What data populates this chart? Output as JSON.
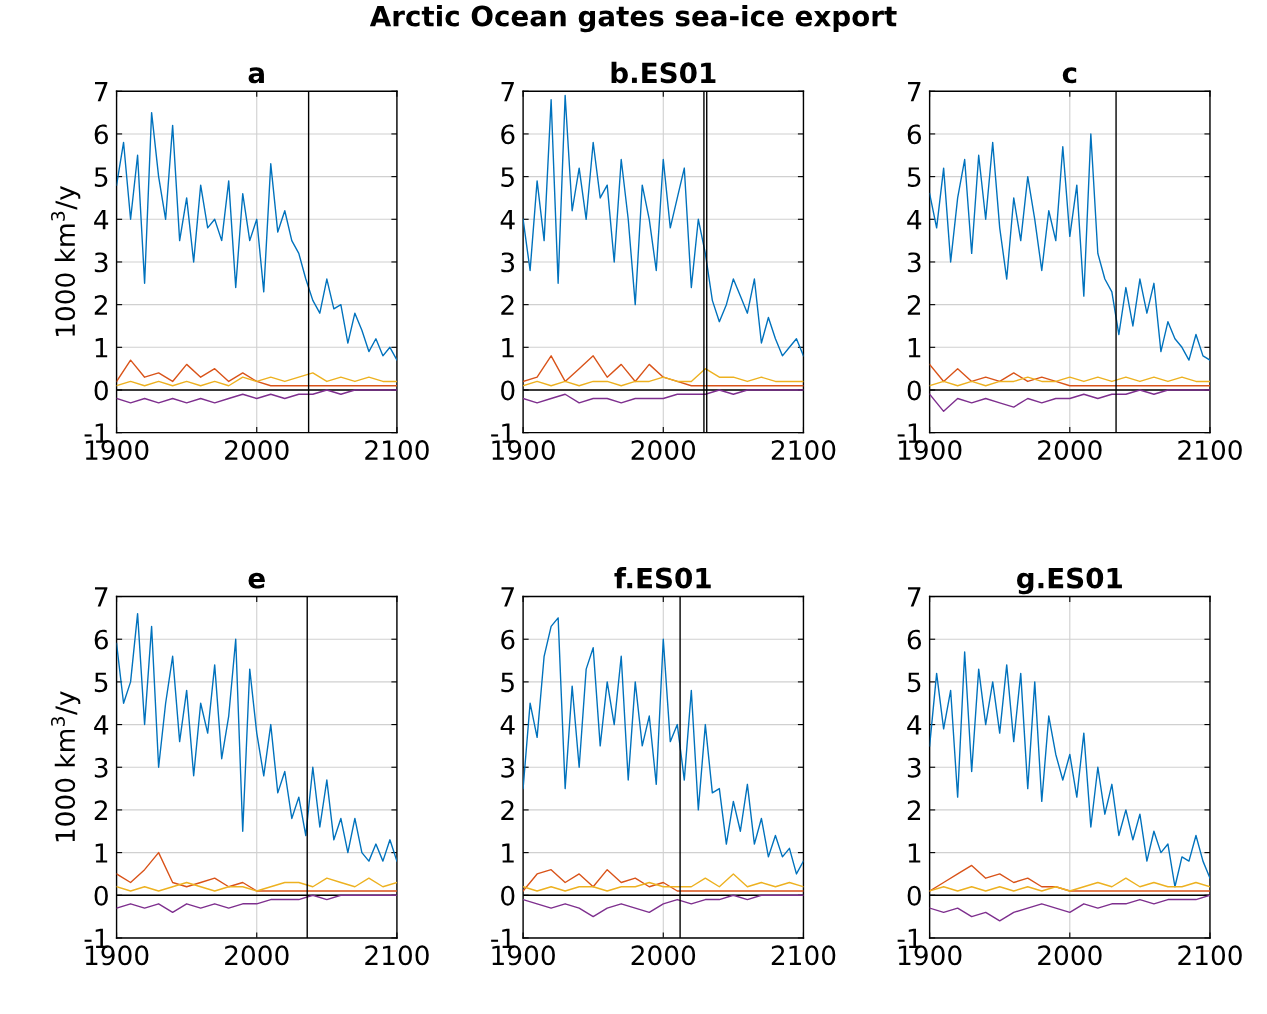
{
  "chart_data": [
    {
      "type": "line",
      "title": "a",
      "ylabel": "1000 km$^{3}$/y",
      "annotations": [
        "Arctic Ocean gates sea-ice export"
      ],
      "xlim": [
        1900,
        2100
      ],
      "ylim": [
        -1,
        7
      ],
      "xticks": [
        1900,
        2000,
        2100
      ],
      "yticks": [
        -1,
        0,
        1,
        2,
        3,
        4,
        5,
        6,
        7
      ],
      "grid": true,
      "series": [
        {
          "color": "#0072bd",
          "x": [
            1900,
            1905,
            1910,
            1915,
            1920,
            1925,
            1930,
            1935,
            1940,
            1945,
            1950,
            1955,
            1960,
            1965,
            1970,
            1975,
            1980,
            1985,
            1990,
            1995,
            2000,
            2005,
            2010,
            2015,
            2020,
            2025,
            2030,
            2035,
            2040,
            2045,
            2050,
            2055,
            2060,
            2065,
            2070,
            2075,
            2080,
            2085,
            2090,
            2095,
            2100
          ],
          "values": [
            4.8,
            5.8,
            4.0,
            5.5,
            2.5,
            6.5,
            5.0,
            4.0,
            6.2,
            3.5,
            4.5,
            3.0,
            4.8,
            3.8,
            4.0,
            3.5,
            4.9,
            2.4,
            4.6,
            3.5,
            4.0,
            2.3,
            5.3,
            3.7,
            4.2,
            3.5,
            3.2,
            2.6,
            2.1,
            1.8,
            2.6,
            1.9,
            2.0,
            1.1,
            1.8,
            1.4,
            0.9,
            1.2,
            0.8,
            1.0,
            0.7
          ]
        },
        {
          "color": "#d95319",
          "x": [
            1900,
            1910,
            1920,
            1930,
            1940,
            1950,
            1960,
            1970,
            1980,
            1990,
            2000,
            2010,
            2020,
            2030,
            2040,
            2050,
            2060,
            2070,
            2080,
            2090,
            2100
          ],
          "values": [
            0.2,
            0.7,
            0.3,
            0.4,
            0.2,
            0.6,
            0.3,
            0.5,
            0.2,
            0.4,
            0.2,
            0.1,
            0.1,
            0.1,
            0.1,
            0.1,
            0.1,
            0.1,
            0.1,
            0.1,
            0.1
          ]
        },
        {
          "color": "#edb120",
          "x": [
            1900,
            1910,
            1920,
            1930,
            1940,
            1950,
            1960,
            1970,
            1980,
            1990,
            2000,
            2010,
            2020,
            2030,
            2040,
            2050,
            2060,
            2070,
            2080,
            2090,
            2100
          ],
          "values": [
            0.1,
            0.2,
            0.1,
            0.2,
            0.1,
            0.2,
            0.1,
            0.2,
            0.1,
            0.3,
            0.2,
            0.3,
            0.2,
            0.3,
            0.4,
            0.2,
            0.3,
            0.2,
            0.3,
            0.2,
            0.2
          ]
        },
        {
          "color": "#7e2f8e",
          "x": [
            1900,
            1910,
            1920,
            1930,
            1940,
            1950,
            1960,
            1970,
            1980,
            1990,
            2000,
            2010,
            2020,
            2030,
            2040,
            2050,
            2060,
            2070,
            2080,
            2090,
            2100
          ],
          "values": [
            -0.2,
            -0.3,
            -0.2,
            -0.3,
            -0.2,
            -0.3,
            -0.2,
            -0.3,
            -0.2,
            -0.1,
            -0.2,
            -0.1,
            -0.2,
            -0.1,
            -0.1,
            0.0,
            -0.1,
            0.0,
            0.0,
            0.0,
            0.0
          ]
        }
      ],
      "ref_lines": [
        {
          "axis": "y",
          "value": 0,
          "color": "#000000"
        },
        {
          "axis": "x",
          "value": 2037,
          "color": "#000000"
        }
      ]
    },
    {
      "type": "line",
      "title": "b.ES01",
      "xlim": [
        1900,
        2100
      ],
      "ylim": [
        -1,
        7
      ],
      "xticks": [
        1900,
        2000,
        2100
      ],
      "yticks": [
        -1,
        0,
        1,
        2,
        3,
        4,
        5,
        6,
        7
      ],
      "grid": true,
      "series": [
        {
          "color": "#0072bd",
          "x": [
            1900,
            1905,
            1910,
            1915,
            1920,
            1925,
            1930,
            1935,
            1940,
            1945,
            1950,
            1955,
            1960,
            1965,
            1970,
            1975,
            1980,
            1985,
            1990,
            1995,
            2000,
            2005,
            2010,
            2015,
            2020,
            2025,
            2030,
            2035,
            2040,
            2045,
            2050,
            2055,
            2060,
            2065,
            2070,
            2075,
            2080,
            2085,
            2090,
            2095,
            2100
          ],
          "values": [
            4.0,
            2.8,
            4.9,
            3.5,
            6.8,
            2.5,
            6.9,
            4.2,
            5.2,
            4.0,
            5.8,
            4.5,
            4.8,
            3.0,
            5.4,
            4.0,
            2.0,
            4.8,
            4.0,
            2.8,
            5.4,
            3.8,
            4.5,
            5.2,
            2.4,
            4.0,
            3.2,
            2.1,
            1.6,
            2.0,
            2.6,
            2.2,
            1.8,
            2.6,
            1.1,
            1.7,
            1.2,
            0.8,
            1.0,
            1.2,
            0.8
          ]
        },
        {
          "color": "#d95319",
          "x": [
            1900,
            1910,
            1920,
            1930,
            1940,
            1950,
            1960,
            1970,
            1980,
            1990,
            2000,
            2010,
            2020,
            2030,
            2040,
            2050,
            2060,
            2070,
            2080,
            2090,
            2100
          ],
          "values": [
            0.2,
            0.3,
            0.8,
            0.2,
            0.5,
            0.8,
            0.3,
            0.6,
            0.2,
            0.6,
            0.3,
            0.2,
            0.1,
            0.1,
            0.1,
            0.1,
            0.1,
            0.1,
            0.1,
            0.1,
            0.1
          ]
        },
        {
          "color": "#edb120",
          "x": [
            1900,
            1910,
            1920,
            1930,
            1940,
            1950,
            1960,
            1970,
            1980,
            1990,
            2000,
            2010,
            2020,
            2030,
            2040,
            2050,
            2060,
            2070,
            2080,
            2090,
            2100
          ],
          "values": [
            0.1,
            0.2,
            0.1,
            0.2,
            0.1,
            0.2,
            0.2,
            0.1,
            0.2,
            0.2,
            0.3,
            0.2,
            0.2,
            0.5,
            0.3,
            0.3,
            0.2,
            0.3,
            0.2,
            0.2,
            0.2
          ]
        },
        {
          "color": "#7e2f8e",
          "x": [
            1900,
            1910,
            1920,
            1930,
            1940,
            1950,
            1960,
            1970,
            1980,
            1990,
            2000,
            2010,
            2020,
            2030,
            2040,
            2050,
            2060,
            2070,
            2080,
            2090,
            2100
          ],
          "values": [
            -0.2,
            -0.3,
            -0.2,
            -0.1,
            -0.3,
            -0.2,
            -0.2,
            -0.3,
            -0.2,
            -0.2,
            -0.2,
            -0.1,
            -0.1,
            -0.1,
            0.0,
            -0.1,
            0.0,
            0.0,
            0.0,
            0.0,
            0.0
          ]
        }
      ],
      "ref_lines": [
        {
          "axis": "y",
          "value": 0,
          "color": "#000000"
        },
        {
          "axis": "x",
          "value": 2029,
          "color": "#000000"
        },
        {
          "axis": "x",
          "value": 2031,
          "color": "#000000"
        }
      ]
    },
    {
      "type": "line",
      "title": "c",
      "xlim": [
        1900,
        2100
      ],
      "ylim": [
        -1,
        7
      ],
      "xticks": [
        1900,
        2000,
        2100
      ],
      "yticks": [
        -1,
        0,
        1,
        2,
        3,
        4,
        5,
        6,
        7
      ],
      "grid": true,
      "series": [
        {
          "color": "#0072bd",
          "x": [
            1900,
            1905,
            1910,
            1915,
            1920,
            1925,
            1930,
            1935,
            1940,
            1945,
            1950,
            1955,
            1960,
            1965,
            1970,
            1975,
            1980,
            1985,
            1990,
            1995,
            2000,
            2005,
            2010,
            2015,
            2020,
            2025,
            2030,
            2035,
            2040,
            2045,
            2050,
            2055,
            2060,
            2065,
            2070,
            2075,
            2080,
            2085,
            2090,
            2095,
            2100
          ],
          "values": [
            4.6,
            3.8,
            5.2,
            3.0,
            4.5,
            5.4,
            3.2,
            5.5,
            4.0,
            5.8,
            3.8,
            2.6,
            4.5,
            3.5,
            5.0,
            4.0,
            2.8,
            4.2,
            3.5,
            5.7,
            3.6,
            4.8,
            2.2,
            6.0,
            3.2,
            2.6,
            2.3,
            1.3,
            2.4,
            1.5,
            2.6,
            1.8,
            2.5,
            0.9,
            1.6,
            1.2,
            1.0,
            0.7,
            1.3,
            0.8,
            0.7
          ]
        },
        {
          "color": "#d95319",
          "x": [
            1900,
            1910,
            1920,
            1930,
            1940,
            1950,
            1960,
            1970,
            1980,
            1990,
            2000,
            2010,
            2020,
            2030,
            2040,
            2050,
            2060,
            2070,
            2080,
            2090,
            2100
          ],
          "values": [
            0.6,
            0.2,
            0.5,
            0.2,
            0.3,
            0.2,
            0.4,
            0.2,
            0.3,
            0.2,
            0.1,
            0.1,
            0.1,
            0.1,
            0.1,
            0.1,
            0.1,
            0.1,
            0.1,
            0.1,
            0.1
          ]
        },
        {
          "color": "#edb120",
          "x": [
            1900,
            1910,
            1920,
            1930,
            1940,
            1950,
            1960,
            1970,
            1980,
            1990,
            2000,
            2010,
            2020,
            2030,
            2040,
            2050,
            2060,
            2070,
            2080,
            2090,
            2100
          ],
          "values": [
            0.1,
            0.2,
            0.1,
            0.2,
            0.1,
            0.2,
            0.2,
            0.3,
            0.2,
            0.2,
            0.3,
            0.2,
            0.3,
            0.2,
            0.3,
            0.2,
            0.3,
            0.2,
            0.3,
            0.2,
            0.2
          ]
        },
        {
          "color": "#7e2f8e",
          "x": [
            1900,
            1910,
            1920,
            1930,
            1940,
            1950,
            1960,
            1970,
            1980,
            1990,
            2000,
            2010,
            2020,
            2030,
            2040,
            2050,
            2060,
            2070,
            2080,
            2090,
            2100
          ],
          "values": [
            -0.1,
            -0.5,
            -0.2,
            -0.3,
            -0.2,
            -0.3,
            -0.4,
            -0.2,
            -0.3,
            -0.2,
            -0.2,
            -0.1,
            -0.2,
            -0.1,
            -0.1,
            0.0,
            -0.1,
            0.0,
            0.0,
            0.0,
            0.0
          ]
        }
      ],
      "ref_lines": [
        {
          "axis": "y",
          "value": 0,
          "color": "#000000"
        },
        {
          "axis": "x",
          "value": 2033,
          "color": "#000000"
        }
      ]
    },
    {
      "type": "line",
      "title": "e",
      "ylabel": "1000 km$^{3}$/y",
      "xlim": [
        1900,
        2100
      ],
      "ylim": [
        -1,
        7
      ],
      "xticks": [
        1900,
        2000,
        2100
      ],
      "yticks": [
        -1,
        0,
        1,
        2,
        3,
        4,
        5,
        6,
        7
      ],
      "grid": true,
      "series": [
        {
          "color": "#0072bd",
          "x": [
            1900,
            1905,
            1910,
            1915,
            1920,
            1925,
            1930,
            1935,
            1940,
            1945,
            1950,
            1955,
            1960,
            1965,
            1970,
            1975,
            1980,
            1985,
            1990,
            1995,
            2000,
            2005,
            2010,
            2015,
            2020,
            2025,
            2030,
            2035,
            2040,
            2045,
            2050,
            2055,
            2060,
            2065,
            2070,
            2075,
            2080,
            2085,
            2090,
            2095,
            2100
          ],
          "values": [
            5.9,
            4.5,
            5.0,
            6.6,
            4.0,
            6.3,
            3.0,
            4.5,
            5.6,
            3.6,
            4.8,
            2.8,
            4.5,
            3.8,
            5.4,
            3.2,
            4.2,
            6.0,
            1.5,
            5.3,
            3.8,
            2.8,
            4.0,
            2.4,
            2.9,
            1.8,
            2.3,
            1.4,
            3.0,
            1.6,
            2.7,
            1.3,
            1.8,
            1.0,
            1.8,
            1.0,
            0.8,
            1.2,
            0.8,
            1.3,
            0.8
          ]
        },
        {
          "color": "#d95319",
          "x": [
            1900,
            1910,
            1920,
            1930,
            1940,
            1950,
            1960,
            1970,
            1980,
            1990,
            2000,
            2010,
            2020,
            2030,
            2040,
            2050,
            2060,
            2070,
            2080,
            2090,
            2100
          ],
          "values": [
            0.5,
            0.3,
            0.6,
            1.0,
            0.3,
            0.2,
            0.3,
            0.4,
            0.2,
            0.3,
            0.1,
            0.1,
            0.1,
            0.1,
            0.1,
            0.1,
            0.1,
            0.1,
            0.1,
            0.1,
            0.1
          ]
        },
        {
          "color": "#edb120",
          "x": [
            1900,
            1910,
            1920,
            1930,
            1940,
            1950,
            1960,
            1970,
            1980,
            1990,
            2000,
            2010,
            2020,
            2030,
            2040,
            2050,
            2060,
            2070,
            2080,
            2090,
            2100
          ],
          "values": [
            0.2,
            0.1,
            0.2,
            0.1,
            0.2,
            0.3,
            0.2,
            0.1,
            0.2,
            0.2,
            0.1,
            0.2,
            0.3,
            0.3,
            0.2,
            0.4,
            0.3,
            0.2,
            0.4,
            0.2,
            0.3
          ]
        },
        {
          "color": "#7e2f8e",
          "x": [
            1900,
            1910,
            1920,
            1930,
            1940,
            1950,
            1960,
            1970,
            1980,
            1990,
            2000,
            2010,
            2020,
            2030,
            2040,
            2050,
            2060,
            2070,
            2080,
            2090,
            2100
          ],
          "values": [
            -0.3,
            -0.2,
            -0.3,
            -0.2,
            -0.4,
            -0.2,
            -0.3,
            -0.2,
            -0.3,
            -0.2,
            -0.2,
            -0.1,
            -0.1,
            -0.1,
            0.0,
            -0.1,
            0.0,
            0.0,
            0.0,
            0.0,
            0.0
          ]
        }
      ],
      "ref_lines": [
        {
          "axis": "y",
          "value": 0,
          "color": "#000000"
        },
        {
          "axis": "x",
          "value": 2036,
          "color": "#000000"
        }
      ]
    },
    {
      "type": "line",
      "title": "f.ES01",
      "xlim": [
        1900,
        2100
      ],
      "ylim": [
        -1,
        7
      ],
      "xticks": [
        1900,
        2000,
        2100
      ],
      "yticks": [
        -1,
        0,
        1,
        2,
        3,
        4,
        5,
        6,
        7
      ],
      "grid": true,
      "series": [
        {
          "color": "#0072bd",
          "x": [
            1900,
            1905,
            1910,
            1915,
            1920,
            1925,
            1930,
            1935,
            1940,
            1945,
            1950,
            1955,
            1960,
            1965,
            1970,
            1975,
            1980,
            1985,
            1990,
            1995,
            2000,
            2005,
            2010,
            2015,
            2020,
            2025,
            2030,
            2035,
            2040,
            2045,
            2050,
            2055,
            2060,
            2065,
            2070,
            2075,
            2080,
            2085,
            2090,
            2095,
            2100
          ],
          "values": [
            2.5,
            4.5,
            3.7,
            5.6,
            6.3,
            6.5,
            2.5,
            4.9,
            3.0,
            5.3,
            5.8,
            3.5,
            5.0,
            4.0,
            5.6,
            2.7,
            5.0,
            3.5,
            4.2,
            2.6,
            6.0,
            3.6,
            4.0,
            2.7,
            4.8,
            2.0,
            4.0,
            2.4,
            2.5,
            1.2,
            2.2,
            1.5,
            2.6,
            1.2,
            1.8,
            0.9,
            1.4,
            0.9,
            1.1,
            0.5,
            0.8
          ]
        },
        {
          "color": "#d95319",
          "x": [
            1900,
            1910,
            1920,
            1930,
            1940,
            1950,
            1960,
            1970,
            1980,
            1990,
            2000,
            2010,
            2020,
            2030,
            2040,
            2050,
            2060,
            2070,
            2080,
            2090,
            2100
          ],
          "values": [
            0.1,
            0.5,
            0.6,
            0.3,
            0.5,
            0.2,
            0.6,
            0.3,
            0.4,
            0.2,
            0.3,
            0.1,
            0.1,
            0.1,
            0.1,
            0.1,
            0.1,
            0.1,
            0.1,
            0.1,
            0.1
          ]
        },
        {
          "color": "#edb120",
          "x": [
            1900,
            1910,
            1920,
            1930,
            1940,
            1950,
            1960,
            1970,
            1980,
            1990,
            2000,
            2010,
            2020,
            2030,
            2040,
            2050,
            2060,
            2070,
            2080,
            2090,
            2100
          ],
          "values": [
            0.2,
            0.1,
            0.2,
            0.1,
            0.2,
            0.2,
            0.1,
            0.2,
            0.2,
            0.3,
            0.2,
            0.2,
            0.2,
            0.4,
            0.2,
            0.5,
            0.2,
            0.3,
            0.2,
            0.3,
            0.2
          ]
        },
        {
          "color": "#7e2f8e",
          "x": [
            1900,
            1910,
            1920,
            1930,
            1940,
            1950,
            1960,
            1970,
            1980,
            1990,
            2000,
            2010,
            2020,
            2030,
            2040,
            2050,
            2060,
            2070,
            2080,
            2090,
            2100
          ],
          "values": [
            -0.1,
            -0.2,
            -0.3,
            -0.2,
            -0.3,
            -0.5,
            -0.3,
            -0.2,
            -0.3,
            -0.4,
            -0.2,
            -0.1,
            -0.2,
            -0.1,
            -0.1,
            0.0,
            -0.1,
            0.0,
            0.0,
            0.0,
            0.0
          ]
        }
      ],
      "ref_lines": [
        {
          "axis": "y",
          "value": 0,
          "color": "#000000"
        },
        {
          "axis": "x",
          "value": 2012,
          "color": "#000000"
        }
      ]
    },
    {
      "type": "line",
      "title": "g.ES01",
      "xlim": [
        1900,
        2100
      ],
      "ylim": [
        -1,
        7
      ],
      "xticks": [
        1900,
        2000,
        2100
      ],
      "yticks": [
        -1,
        0,
        1,
        2,
        3,
        4,
        5,
        6,
        7
      ],
      "grid": true,
      "series": [
        {
          "color": "#0072bd",
          "x": [
            1900,
            1905,
            1910,
            1915,
            1920,
            1925,
            1930,
            1935,
            1940,
            1945,
            1950,
            1955,
            1960,
            1965,
            1970,
            1975,
            1980,
            1985,
            1990,
            1995,
            2000,
            2005,
            2010,
            2015,
            2020,
            2025,
            2030,
            2035,
            2040,
            2045,
            2050,
            2055,
            2060,
            2065,
            2070,
            2075,
            2080,
            2085,
            2090,
            2095,
            2100
          ],
          "values": [
            3.5,
            5.2,
            3.9,
            4.8,
            2.3,
            5.7,
            2.9,
            5.3,
            4.0,
            5.0,
            3.8,
            5.4,
            3.6,
            5.2,
            2.5,
            5.0,
            2.2,
            4.2,
            3.3,
            2.7,
            3.3,
            2.3,
            3.8,
            1.6,
            3.0,
            1.9,
            2.6,
            1.4,
            2.0,
            1.3,
            1.9,
            0.8,
            1.5,
            1.0,
            1.2,
            0.2,
            0.9,
            0.8,
            1.4,
            0.8,
            0.4
          ]
        },
        {
          "color": "#d95319",
          "x": [
            1900,
            1910,
            1920,
            1930,
            1940,
            1950,
            1960,
            1970,
            1980,
            1990,
            2000,
            2010,
            2020,
            2030,
            2040,
            2050,
            2060,
            2070,
            2080,
            2090,
            2100
          ],
          "values": [
            0.1,
            0.3,
            0.5,
            0.7,
            0.4,
            0.5,
            0.3,
            0.4,
            0.2,
            0.2,
            0.1,
            0.1,
            0.1,
            0.1,
            0.1,
            0.1,
            0.1,
            0.1,
            0.1,
            0.1,
            0.1
          ]
        },
        {
          "color": "#edb120",
          "x": [
            1900,
            1910,
            1920,
            1930,
            1940,
            1950,
            1960,
            1970,
            1980,
            1990,
            2000,
            2010,
            2020,
            2030,
            2040,
            2050,
            2060,
            2070,
            2080,
            2090,
            2100
          ],
          "values": [
            0.1,
            0.2,
            0.1,
            0.2,
            0.1,
            0.2,
            0.1,
            0.2,
            0.1,
            0.2,
            0.1,
            0.2,
            0.3,
            0.2,
            0.4,
            0.2,
            0.3,
            0.2,
            0.2,
            0.3,
            0.2
          ]
        },
        {
          "color": "#7e2f8e",
          "x": [
            1900,
            1910,
            1920,
            1930,
            1940,
            1950,
            1960,
            1970,
            1980,
            1990,
            2000,
            2010,
            2020,
            2030,
            2040,
            2050,
            2060,
            2070,
            2080,
            2090,
            2100
          ],
          "values": [
            -0.3,
            -0.4,
            -0.3,
            -0.5,
            -0.4,
            -0.6,
            -0.4,
            -0.3,
            -0.2,
            -0.3,
            -0.4,
            -0.2,
            -0.3,
            -0.2,
            -0.2,
            -0.1,
            -0.2,
            -0.1,
            -0.1,
            -0.1,
            0.0
          ]
        }
      ],
      "ref_lines": [
        {
          "axis": "y",
          "value": 0,
          "color": "#000000"
        }
      ]
    }
  ]
}
